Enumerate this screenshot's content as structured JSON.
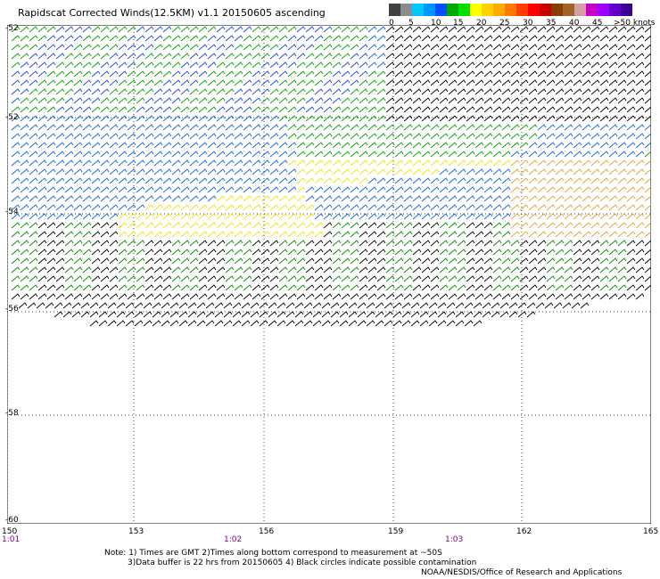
{
  "title": "Rapidscat Corrected Winds(12.5KM) v1.1 20150605 ascending",
  "legend": {
    "colors": [
      "#404040",
      "#8c8c8c",
      "#00c8ff",
      "#0096ff",
      "#0050ff",
      "#00aa00",
      "#00e000",
      "#ffff00",
      "#ffd200",
      "#ffaa00",
      "#ff7800",
      "#ff3c00",
      "#ff0000",
      "#c80000",
      "#8c3c00",
      "#a06428",
      "#d2a0a0",
      "#c800c8",
      "#a000ff",
      "#6400c8",
      "#3c0096"
    ],
    "labels": [
      "0",
      "5",
      "10",
      "15",
      "20",
      "25",
      "30",
      "35",
      "40",
      "45",
      ">50 knots"
    ]
  },
  "axes": {
    "lat_labels": [
      "-52",
      "-54",
      "-56",
      "-58",
      "-60"
    ],
    "lon_labels": [
      "150",
      "153",
      "156",
      "159",
      "162",
      "165"
    ],
    "time_labels": [
      "1:01",
      "1:02",
      "1:03"
    ]
  },
  "notes": {
    "line1": "Note: 1) Times are GMT 2)Times along bottom correspond to measurement at ~50S",
    "line2": "3)Data buffer is 22 hrs from 20150605 4) Black circles indicate possible contamination",
    "line3": "NOAA/NESDIS/Office of Research and Applications"
  }
}
